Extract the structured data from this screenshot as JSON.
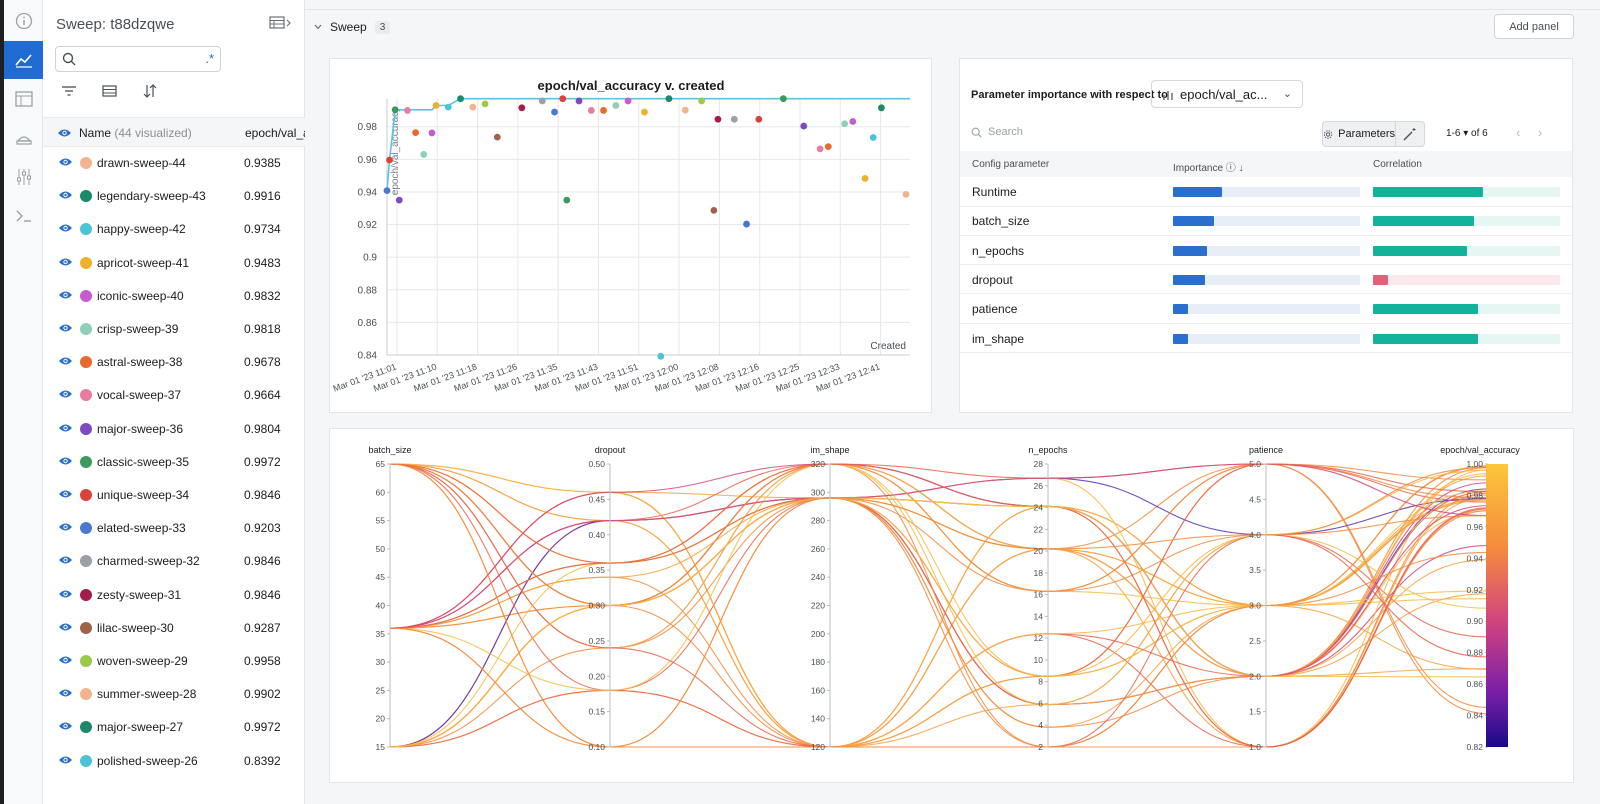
{
  "colors": {
    "accent": "#1f6bd1",
    "importance": "#2b6fce",
    "importance_track": "#e7eef8",
    "corr_pos": "#12b39a",
    "corr_pos_track": "#e6f6f3",
    "corr_neg": "#e2627a",
    "corr_neg_track": "#fbe9ed"
  },
  "rail": {
    "items": [
      {
        "icon": "info-icon"
      },
      {
        "icon": "line-chart-icon",
        "active": true
      },
      {
        "icon": "table-icon"
      },
      {
        "icon": "sweep-broom-icon"
      },
      {
        "icon": "sliders-icon"
      },
      {
        "icon": "terminal-icon"
      }
    ]
  },
  "runs_panel": {
    "title": "Sweep: t88dzqwe",
    "search": {
      "value": "",
      "regex_label": ".*"
    },
    "header": {
      "name_label": "Name",
      "count_label": "(44 visualized)",
      "metric_label": "epoch/val_a"
    },
    "runs": [
      {
        "name": "drawn-sweep-44",
        "value": "0.9385",
        "color": "#f2b48f"
      },
      {
        "name": "legendary-sweep-43",
        "value": "0.9916",
        "color": "#1a8a6a"
      },
      {
        "name": "happy-sweep-42",
        "value": "0.9734",
        "color": "#4cc3d9"
      },
      {
        "name": "apricot-sweep-41",
        "value": "0.9483",
        "color": "#f0b02b"
      },
      {
        "name": "iconic-sweep-40",
        "value": "0.9832",
        "color": "#c75bd1"
      },
      {
        "name": "crisp-sweep-39",
        "value": "0.9818",
        "color": "#8dcfb7"
      },
      {
        "name": "astral-sweep-38",
        "value": "0.9678",
        "color": "#e86a2c"
      },
      {
        "name": "vocal-sweep-37",
        "value": "0.9664",
        "color": "#e87ba0"
      },
      {
        "name": "major-sweep-36",
        "value": "0.9804",
        "color": "#7b4bbf"
      },
      {
        "name": "classic-sweep-35",
        "value": "0.9972",
        "color": "#3d9a5c"
      },
      {
        "name": "unique-sweep-34",
        "value": "0.9846",
        "color": "#d9433a"
      },
      {
        "name": "elated-sweep-33",
        "value": "0.9203",
        "color": "#4a78d0"
      },
      {
        "name": "charmed-sweep-32",
        "value": "0.9846",
        "color": "#9aa0a7"
      },
      {
        "name": "zesty-sweep-31",
        "value": "0.9846",
        "color": "#a51c4b"
      },
      {
        "name": "lilac-sweep-30",
        "value": "0.9287",
        "color": "#a0634a"
      },
      {
        "name": "woven-sweep-29",
        "value": "0.9958",
        "color": "#9bc94a"
      },
      {
        "name": "summer-sweep-28",
        "value": "0.9902",
        "color": "#f2b48f"
      },
      {
        "name": "major-sweep-27",
        "value": "0.9972",
        "color": "#1a8a6a"
      },
      {
        "name": "polished-sweep-26",
        "value": "0.8392",
        "color": "#4cc3d9"
      }
    ]
  },
  "section": {
    "title": "Sweep",
    "count": "3",
    "add_panel_label": "Add panel"
  },
  "scatter": {
    "title": "epoch/val_accuracy v. created",
    "y_axis_label": "epoch/val_accuracy",
    "x_axis_label": "Created",
    "y_ticks": [
      "0.98",
      "0.96",
      "0.94",
      "0.92",
      "0.9",
      "0.88",
      "0.86",
      "0.84"
    ],
    "x_ticks": [
      "Mar 01 '23 11:01",
      "Mar 01 '23 11:10",
      "Mar 01 '23 11:18",
      "Mar 01 '23 11:26",
      "Mar 01 '23 11:35",
      "Mar 01 '23 11:43",
      "Mar 01 '23 11:51",
      "Mar 01 '23 12:00",
      "Mar 01 '23 12:08",
      "Mar 01 '23 12:16",
      "Mar 01 '23 12:25",
      "Mar 01 '23 12:33",
      "Mar 01 '23 12:41"
    ]
  },
  "param_importance": {
    "label": "Parameter importance with respect to",
    "metric_select": "epoch/val_ac...",
    "search_placeholder": "Search",
    "parameters_button": "Parameters",
    "pager": "1-6 ▾   of 6",
    "columns": {
      "param": "Config parameter",
      "importance": "Importance",
      "correlation": "Correlation"
    },
    "rows": [
      {
        "name": "Runtime",
        "importance": 0.26,
        "correlation": 0.59
      },
      {
        "name": "batch_size",
        "importance": 0.22,
        "correlation": 0.54
      },
      {
        "name": "n_epochs",
        "importance": 0.18,
        "correlation": 0.5
      },
      {
        "name": "dropout",
        "importance": 0.17,
        "correlation": -0.08
      },
      {
        "name": "patience",
        "importance": 0.08,
        "correlation": 0.56
      },
      {
        "name": "im_shape",
        "importance": 0.08,
        "correlation": 0.56
      }
    ]
  },
  "chart_data": {
    "type": "scatter",
    "title": "epoch/val_accuracy v. created",
    "xlabel": "Created",
    "ylabel": "epoch/val_accuracy",
    "ylim": [
      0.84,
      0.997
    ],
    "x_range": [
      0,
      128
    ],
    "grid": true,
    "best_line_color": "#59c3e6",
    "series": [
      {
        "points": [
          {
            "x": 0,
            "y": 0.9408,
            "color": "#4a78d0"
          },
          {
            "x": 0.6,
            "y": 0.9596,
            "color": "#d9433a"
          },
          {
            "x": 2,
            "y": 0.9904,
            "color": "#3d9a5c"
          },
          {
            "x": 3,
            "y": 0.935,
            "color": "#7b4bbf"
          },
          {
            "x": 5,
            "y": 0.99,
            "color": "#e87ba0"
          },
          {
            "x": 7,
            "y": 0.9764,
            "color": "#e86a2c"
          },
          {
            "x": 9,
            "y": 0.963,
            "color": "#8dcfb7"
          },
          {
            "x": 11,
            "y": 0.9762,
            "color": "#c75bd1"
          },
          {
            "x": 12,
            "y": 0.993,
            "color": "#f0b02b"
          },
          {
            "x": 15,
            "y": 0.992,
            "color": "#4cc3d9"
          },
          {
            "x": 18,
            "y": 0.9972,
            "color": "#1a8a6a"
          },
          {
            "x": 21,
            "y": 0.992,
            "color": "#f2b48f"
          },
          {
            "x": 24,
            "y": 0.994,
            "color": "#9bc94a"
          },
          {
            "x": 27,
            "y": 0.9736,
            "color": "#a0634a"
          },
          {
            "x": 33,
            "y": 0.9916,
            "color": "#a51c4b"
          },
          {
            "x": 38,
            "y": 0.9958,
            "color": "#9aa0a7"
          },
          {
            "x": 41,
            "y": 0.989,
            "color": "#4a78d0"
          },
          {
            "x": 43,
            "y": 0.9972,
            "color": "#d9433a"
          },
          {
            "x": 44,
            "y": 0.935,
            "color": "#3d9a5c"
          },
          {
            "x": 47,
            "y": 0.9958,
            "color": "#7b4bbf"
          },
          {
            "x": 50,
            "y": 0.99,
            "color": "#e87ba0"
          },
          {
            "x": 53,
            "y": 0.99,
            "color": "#e86a2c"
          },
          {
            "x": 56,
            "y": 0.993,
            "color": "#8dcfb7"
          },
          {
            "x": 59,
            "y": 0.9958,
            "color": "#c75bd1"
          },
          {
            "x": 63,
            "y": 0.989,
            "color": "#f0b02b"
          },
          {
            "x": 67,
            "y": 0.8392,
            "color": "#4cc3d9"
          },
          {
            "x": 69,
            "y": 0.9972,
            "color": "#1a8a6a"
          },
          {
            "x": 73,
            "y": 0.9902,
            "color": "#f2b48f"
          },
          {
            "x": 77,
            "y": 0.9958,
            "color": "#9bc94a"
          },
          {
            "x": 80,
            "y": 0.9287,
            "color": "#a0634a"
          },
          {
            "x": 81,
            "y": 0.9846,
            "color": "#a51c4b"
          },
          {
            "x": 85,
            "y": 0.9846,
            "color": "#9aa0a7"
          },
          {
            "x": 88,
            "y": 0.9203,
            "color": "#4a78d0"
          },
          {
            "x": 91,
            "y": 0.9846,
            "color": "#d9433a"
          },
          {
            "x": 97,
            "y": 0.9972,
            "color": "#3d9a5c"
          },
          {
            "x": 102,
            "y": 0.9804,
            "color": "#7b4bbf"
          },
          {
            "x": 106,
            "y": 0.9664,
            "color": "#e87ba0"
          },
          {
            "x": 108,
            "y": 0.9678,
            "color": "#e86a2c"
          },
          {
            "x": 112,
            "y": 0.9818,
            "color": "#8dcfb7"
          },
          {
            "x": 114,
            "y": 0.9832,
            "color": "#c75bd1"
          },
          {
            "x": 117,
            "y": 0.9483,
            "color": "#f0b02b"
          },
          {
            "x": 119,
            "y": 0.9734,
            "color": "#4cc3d9"
          },
          {
            "x": 121,
            "y": 0.9916,
            "color": "#1a8a6a"
          },
          {
            "x": 127,
            "y": 0.9385,
            "color": "#f2b48f"
          }
        ]
      }
    ]
  },
  "parallel_coords": {
    "axes": [
      {
        "name": "batch_size",
        "ticks": [
          "65",
          "60",
          "55",
          "50",
          "45",
          "40",
          "35",
          "30",
          "25",
          "20",
          "15"
        ]
      },
      {
        "name": "dropout",
        "ticks": [
          "0.50",
          "0.45",
          "0.40",
          "0.35",
          "0.30",
          "0.25",
          "0.20",
          "0.15",
          "0.10"
        ]
      },
      {
        "name": "im_shape",
        "ticks": [
          "320",
          "300",
          "280",
          "260",
          "240",
          "220",
          "200",
          "180",
          "160",
          "140",
          "120"
        ]
      },
      {
        "name": "n_epochs",
        "ticks": [
          "28",
          "26",
          "24",
          "22",
          "20",
          "18",
          "16",
          "14",
          "12",
          "10",
          "8",
          "6",
          "4",
          "2"
        ]
      },
      {
        "name": "patience",
        "ticks": [
          "5.0",
          "4.5",
          "4.0",
          "3.5",
          "3.0",
          "2.5",
          "2.0",
          "1.5",
          "1.0"
        ]
      },
      {
        "name": "epoch/val_accuracy",
        "ticks": [
          "1.00",
          "0.98",
          "0.96",
          "0.94",
          "0.92",
          "0.90",
          "0.88",
          "0.86",
          "0.84",
          "0.82"
        ]
      }
    ]
  }
}
